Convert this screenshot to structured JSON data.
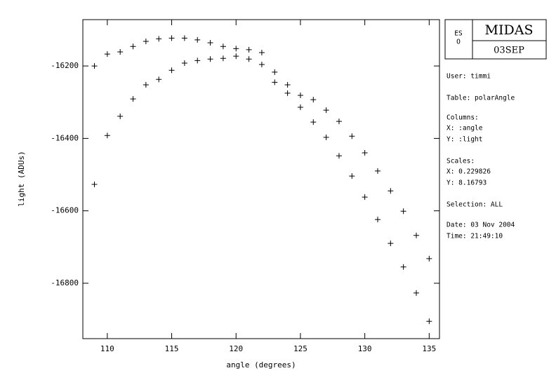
{
  "chart_data": {
    "type": "scatter",
    "xlabel": "angle (degrees)",
    "ylabel": "light (ADUs)",
    "xlim": [
      108.1,
      135.8
    ],
    "ylim": [
      -16953,
      -16072
    ],
    "xticks": [
      110,
      115,
      120,
      125,
      130,
      135
    ],
    "yticks": [
      -16200,
      -16400,
      -16600,
      -16800
    ],
    "series": [
      {
        "color": "#000000",
        "x": [
          109,
          110,
          111,
          112,
          113,
          114,
          115,
          116,
          117,
          118,
          119,
          120,
          121,
          122,
          123,
          124,
          125,
          126,
          127,
          128,
          129,
          130,
          131,
          132,
          133,
          134,
          135
        ],
        "values": [
          -16200,
          -16167,
          -16161,
          -16146,
          -16132,
          -16125,
          -16123,
          -16123,
          -16128,
          -16136,
          -16146,
          -16152,
          -16155,
          -16163,
          -16217,
          -16252,
          -16281,
          -16293,
          -16322,
          -16353,
          -16394,
          -16440,
          -16490,
          -16545,
          -16601,
          -16668,
          -16732
        ]
      },
      {
        "color": "#000000",
        "x": [
          109,
          110,
          111,
          112,
          113,
          114,
          115,
          116,
          117,
          118,
          119,
          120,
          121,
          122,
          123,
          124,
          125,
          126,
          127,
          128,
          129,
          130,
          131,
          132,
          133,
          134,
          135
        ],
        "values": [
          -16527,
          -16392,
          -16339,
          -16291,
          -16252,
          -16237,
          -16212,
          -16192,
          -16185,
          -16181,
          -16179,
          -16173,
          -16181,
          -16196,
          -16245,
          -16275,
          -16314,
          -16355,
          -16397,
          -16448,
          -16504,
          -16562,
          -16624,
          -16690,
          -16755,
          -16827,
          -16905
        ]
      }
    ]
  },
  "info_panel": {
    "logo_lines": [
      "ES",
      "O"
    ],
    "title": "MIDAS",
    "date_code": "03SEP",
    "lines": [
      "User: timmi",
      "Table: polarAngle",
      "Columns:",
      "X: :angle",
      "Y: :light",
      "Scales:",
      "X: 0.229826",
      "Y: 8.16793",
      "Selection:  ALL",
      "Date: 03 Nov 2004",
      "Time: 21:49:10"
    ]
  }
}
